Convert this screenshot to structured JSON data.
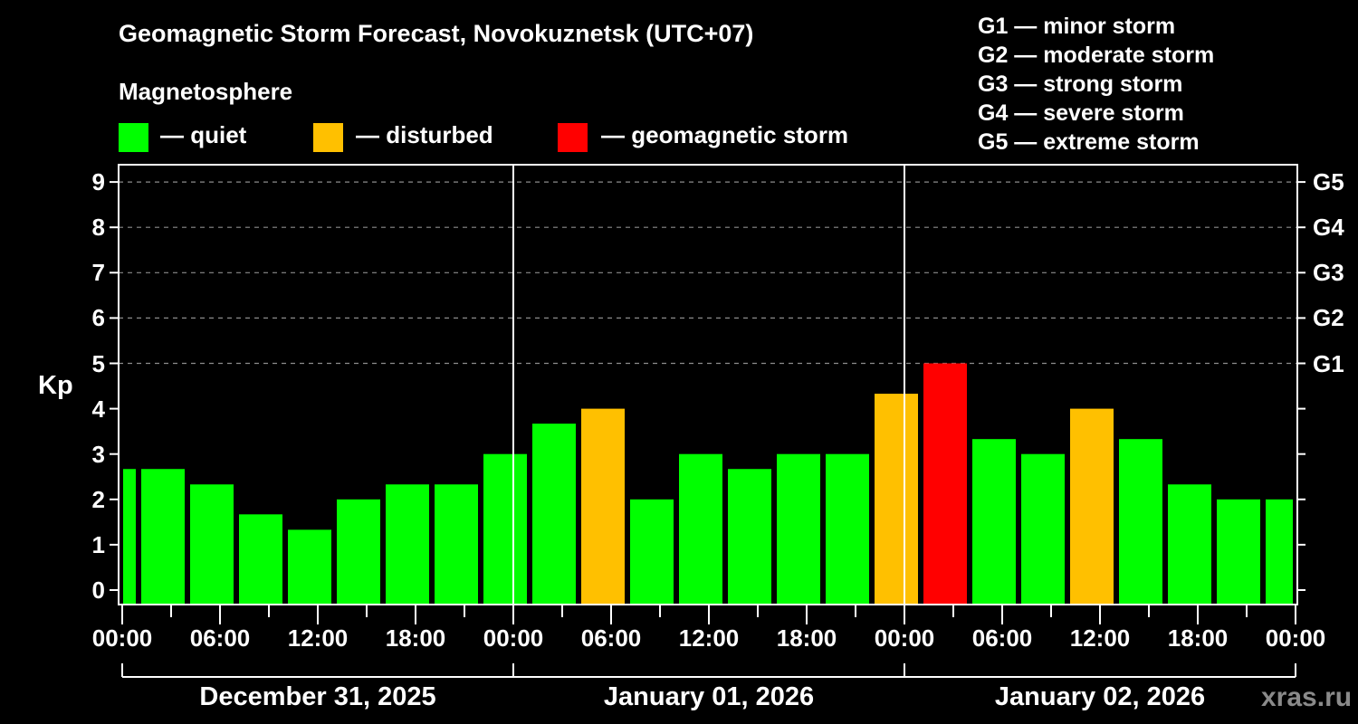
{
  "title": "Geomagnetic Storm Forecast, Novokuznetsk (UTC+07)",
  "legend": {
    "heading": "Magnetosphere",
    "items": [
      {
        "label": "— quiet",
        "color": "#00ff00"
      },
      {
        "label": "— disturbed",
        "color": "#ffc000"
      },
      {
        "label": "— geomagnetic storm",
        "color": "#ff0000"
      }
    ]
  },
  "g_scale": [
    "G1 — minor storm",
    "G2 — moderate storm",
    "G3 — strong storm",
    "G4 — severe storm",
    "G5 — extreme storm"
  ],
  "axes": {
    "ylabel": "Kp",
    "yticks": [
      "0",
      "1",
      "2",
      "3",
      "4",
      "5",
      "6",
      "7",
      "8",
      "9"
    ],
    "g_ticks": [
      {
        "label": "G1",
        "kp": 5
      },
      {
        "label": "G2",
        "kp": 6
      },
      {
        "label": "G3",
        "kp": 7
      },
      {
        "label": "G4",
        "kp": 8
      },
      {
        "label": "G5",
        "kp": 9
      }
    ],
    "xticks": [
      "00:00",
      "06:00",
      "12:00",
      "18:00",
      "00:00",
      "06:00",
      "12:00",
      "18:00",
      "00:00",
      "06:00",
      "12:00",
      "18:00",
      "00:00"
    ],
    "dates": [
      "December 31, 2025",
      "January 01, 2026",
      "January 02, 2026"
    ]
  },
  "watermark": "xras.ru",
  "colors": {
    "quiet": "#00ff00",
    "disturbed": "#ffc000",
    "storm": "#ff0000",
    "grid": "#8c8c8c"
  },
  "chart_data": {
    "type": "bar",
    "title": "Geomagnetic Storm Forecast, Novokuznetsk (UTC+07)",
    "xlabel": "",
    "ylabel": "Kp",
    "ylim": [
      0,
      9
    ],
    "grid": "dashed horizontal at Kp 5-9",
    "legend_position": "top",
    "categories": [
      "Dec 31 00:00-01:00",
      "Dec 31 01:00",
      "Dec 31 04:00",
      "Dec 31 07:00",
      "Dec 31 10:00",
      "Dec 31 13:00",
      "Dec 31 16:00",
      "Dec 31 19:00",
      "Dec 31 22:00",
      "Jan 01 01:00",
      "Jan 01 04:00",
      "Jan 01 07:00",
      "Jan 01 10:00",
      "Jan 01 13:00",
      "Jan 01 16:00",
      "Jan 01 19:00",
      "Jan 01 22:00",
      "Jan 02 01:00",
      "Jan 02 04:00",
      "Jan 02 07:00",
      "Jan 02 10:00",
      "Jan 02 13:00",
      "Jan 02 16:00",
      "Jan 02 19:00",
      "Jan 02 22:00-24:00"
    ],
    "values": [
      2.67,
      2.67,
      2.33,
      1.67,
      1.33,
      2.0,
      2.33,
      2.33,
      3.0,
      3.67,
      4.0,
      2.0,
      3.0,
      2.67,
      3.0,
      3.0,
      4.33,
      5.0,
      3.33,
      3.0,
      4.0,
      3.33,
      2.33,
      2.0,
      2.0
    ],
    "levels": [
      "quiet",
      "quiet",
      "quiet",
      "quiet",
      "quiet",
      "quiet",
      "quiet",
      "quiet",
      "quiet",
      "quiet",
      "disturbed",
      "quiet",
      "quiet",
      "quiet",
      "quiet",
      "quiet",
      "disturbed",
      "storm",
      "quiet",
      "quiet",
      "disturbed",
      "quiet",
      "quiet",
      "quiet",
      "quiet"
    ],
    "start_hours": [
      0,
      1,
      4,
      7,
      10,
      13,
      16,
      19,
      22,
      25,
      28,
      31,
      34,
      37,
      40,
      43,
      46,
      49,
      52,
      55,
      58,
      61,
      64,
      67,
      70
    ],
    "end_hours": [
      1,
      4,
      7,
      10,
      13,
      16,
      19,
      22,
      25,
      28,
      31,
      34,
      37,
      40,
      43,
      46,
      49,
      52,
      55,
      58,
      61,
      64,
      67,
      70,
      72
    ]
  }
}
